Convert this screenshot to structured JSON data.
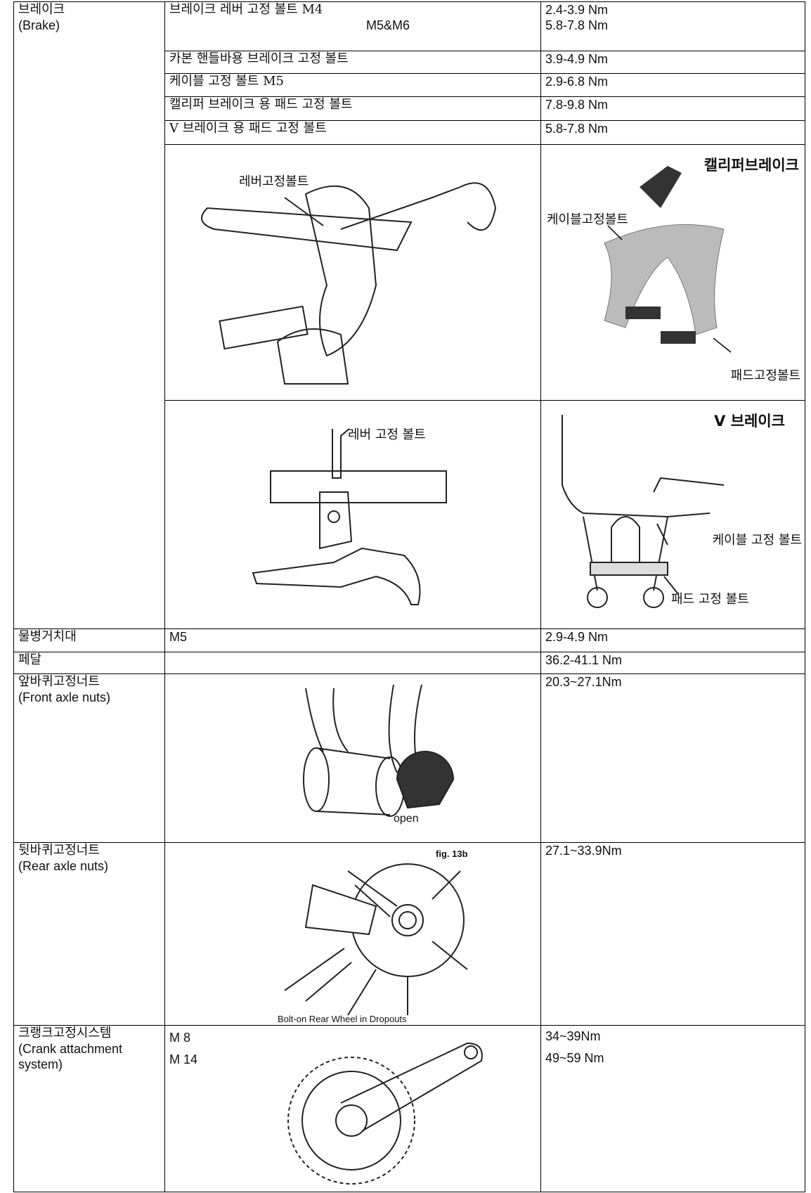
{
  "brake": {
    "label": "브레이크",
    "label_en": "(Brake)",
    "specs": [
      {
        "bolt": "브레이크 레버 고정 볼트 M4",
        "bolt_sub": "M5&M6",
        "torque": "2.4-3.9 Nm",
        "torque_sub": "5.8-7.8 Nm"
      },
      {
        "bolt": "카본 핸들바용 브레이크 고정 볼트",
        "torque": "3.9-4.9 Nm"
      },
      {
        "bolt": "케이블 고정 볼트 M5",
        "torque": "2.9-6.8 Nm"
      },
      {
        "bolt": "캘리퍼 브레이크 용 패드 고정 볼트",
        "torque": "7.8-9.8 Nm"
      },
      {
        "bolt": "V 브레이크 용 패드 고정 볼트",
        "torque": "5.8-7.8 Nm"
      }
    ],
    "figures": [
      {
        "label": "레버고정볼트"
      },
      {
        "title": "캘리퍼브레이크",
        "labels": [
          "케이블고정볼트",
          "패드고정볼트"
        ]
      },
      {
        "label": "레버 고정 볼트"
      },
      {
        "title": "V 브레이크",
        "labels": [
          "케이블 고정 볼트",
          "패드 고정 볼트"
        ]
      }
    ]
  },
  "rows": [
    {
      "part": "물병거치대",
      "spec": "M5",
      "torque": "2.9-4.9 Nm"
    },
    {
      "part": "페달",
      "torque": "36.2-41.1 Nm"
    },
    {
      "part": "앞바퀴고정너트",
      "part_en": "(Front axle nuts)",
      "figure_label": "open",
      "torque": "20.3~27.1Nm"
    },
    {
      "part": "뒷바퀴고정너트",
      "part_en": "(Rear axle nuts)",
      "figure_title": "fig. 13b",
      "figure_caption": "Bolt-on Rear Wheel in Dropouts",
      "torque": "27.1~33.9Nm"
    },
    {
      "part": "크랭크고정시스템",
      "part_en": "(Crank attachment system)",
      "specs": [
        "M 8",
        "M 14"
      ],
      "torques": [
        "34~39Nm",
        "49~59 Nm"
      ]
    }
  ]
}
